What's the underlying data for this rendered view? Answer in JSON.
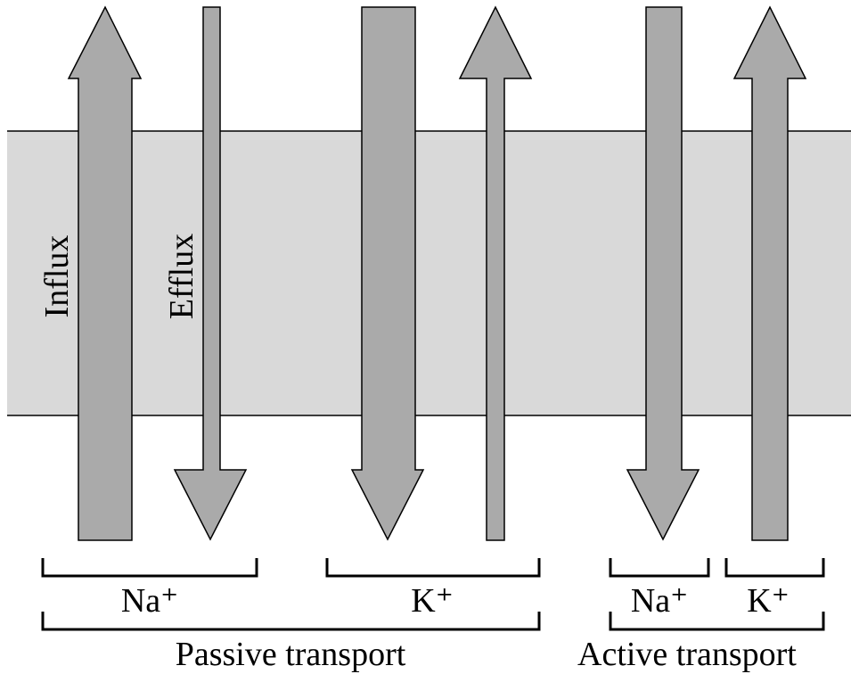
{
  "labels": {
    "influx": "Influx",
    "efflux": "Efflux"
  },
  "groups": {
    "passive": {
      "label": "Passive transport",
      "na": "Na⁺",
      "k": "K⁺"
    },
    "active": {
      "label": "Active transport",
      "na": "Na⁺",
      "k": "K⁺"
    }
  }
}
